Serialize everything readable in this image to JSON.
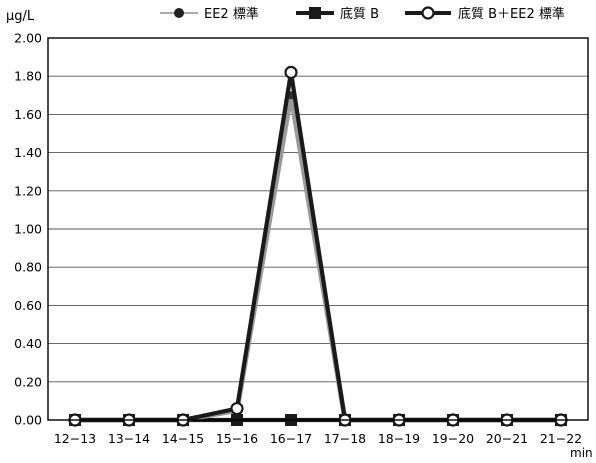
{
  "chart_data": {
    "type": "line",
    "ylabel": "μg/L",
    "xlabel": "min",
    "ylim": [
      0,
      2.0
    ],
    "yticks": [
      0.0,
      0.2,
      0.4,
      0.6,
      0.8,
      1.0,
      1.2,
      1.4,
      1.6,
      1.8,
      2.0
    ],
    "ytick_labels": [
      "0.00",
      "0.20",
      "0.40",
      "0.60",
      "0.80",
      "1.00",
      "1.20",
      "1.40",
      "1.60",
      "1.80",
      "2.00"
    ],
    "categories": [
      "12−13",
      "13−14",
      "14−15",
      "15−16",
      "16−17",
      "17−18",
      "18−19",
      "19−20",
      "20−21",
      "21−22"
    ],
    "grid": true,
    "legend_position": "top",
    "series": [
      {
        "name": "EE2 標準",
        "marker": "dot",
        "color": "#9a9a9a",
        "values": [
          0,
          0,
          0,
          0.05,
          1.7,
          0,
          0,
          0,
          0,
          0
        ]
      },
      {
        "name": "底質 B",
        "marker": "square",
        "color": "#1a1a1a",
        "values": [
          0,
          0,
          0,
          0,
          0,
          0,
          0,
          0,
          0,
          0
        ]
      },
      {
        "name": "底質 B＋EE2 標準",
        "marker": "circle-open",
        "color": "#1a1a1a",
        "values": [
          0,
          0,
          0,
          0.06,
          1.82,
          0,
          0,
          0,
          0,
          0
        ]
      }
    ]
  }
}
